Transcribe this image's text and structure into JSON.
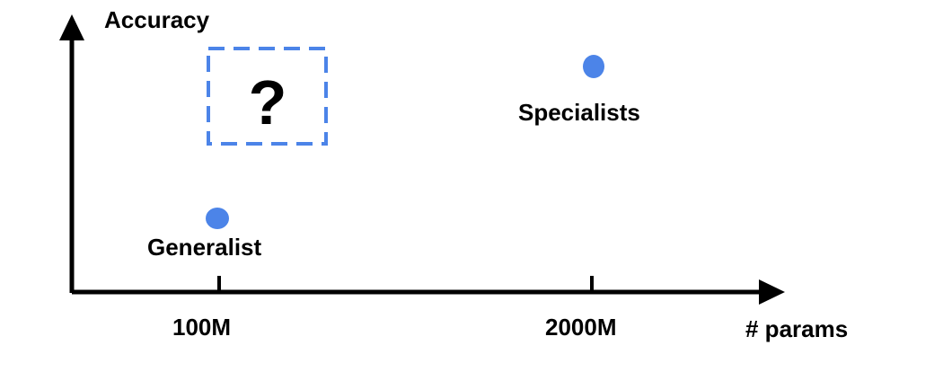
{
  "chart_data": {
    "type": "scatter",
    "xlabel": "# params",
    "ylabel": "Accuracy",
    "x_ticks": [
      "100M",
      "2000M"
    ],
    "points": [
      {
        "label": "Generalist",
        "x": "100M"
      },
      {
        "label": "Specialists",
        "x": "2000M"
      }
    ],
    "annotation": {
      "text": "?",
      "x": "100M"
    },
    "grid": false,
    "colors": {
      "point": "#4c84e8",
      "box": "#4c84e8",
      "axis": "#000000"
    }
  }
}
